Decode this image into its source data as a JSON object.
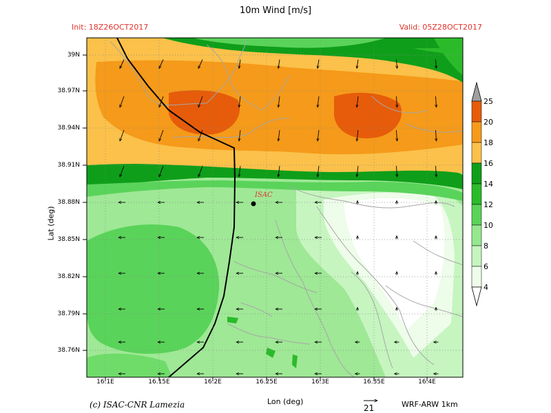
{
  "title": "10m Wind [m/s]",
  "init": "Init: 18Z26OCT2017",
  "valid": "Valid: 05Z28OCT2017",
  "y_axis_label": "Lat (deg)",
  "x_axis_label": "Lon (deg)",
  "lat_ticks": [
    "39N",
    "38.97N",
    "38.94N",
    "38.91N",
    "38.88N",
    "38.85N",
    "38.82N",
    "38.79N",
    "38.76N"
  ],
  "lon_ticks": [
    "16.1E",
    "16.15E",
    "16.2E",
    "16.25E",
    "16.3E",
    "16.35E",
    "16.4E"
  ],
  "colorbar": {
    "labels": [
      "25",
      "20",
      "18",
      "16",
      "14",
      "12",
      "10",
      "8",
      "6",
      "4"
    ],
    "colors": [
      "#e65c0a",
      "#f59a1a",
      "#fbc14a",
      "#0f9e1a",
      "#2bbb2a",
      "#5ad35a",
      "#95e88e",
      "#c6f5c0",
      "#eefcea"
    ]
  },
  "station": {
    "label": "ISAC",
    "lat": 38.88,
    "lon": 16.24
  },
  "credit": "(c) ISAC-CNR Lamezia",
  "model": "WRF-ARW 1km",
  "reference_vector": "21"
}
